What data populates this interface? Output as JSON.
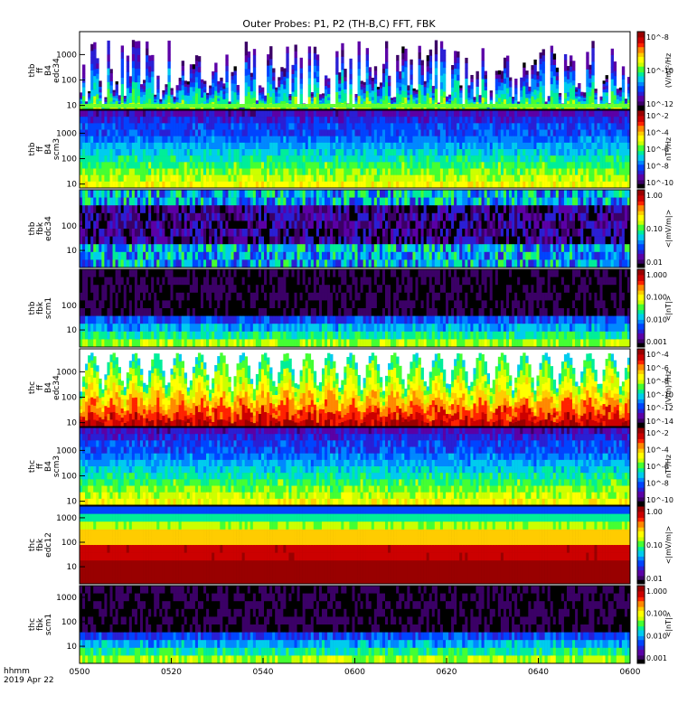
{
  "title": "Outer Probes: P1, P2 (TH-B,C) FFT, FBK",
  "footer": {
    "line1": "hhmm",
    "line2": "2019 Apr 22"
  },
  "chart_data": {
    "type": "heatmap",
    "title": "Outer Probes: P1, P2 (TH-B,C) FFT, FBK",
    "x_ticks": [
      "0500",
      "0520",
      "0540",
      "0600",
      "0620",
      "0640",
      "0600"
    ],
    "x_tick_note": "leftmost tick printed as 0600 in original image",
    "panels": [
      {
        "id": "thb-ff-edc34",
        "labels": [
          "thb",
          "ff",
          "B4",
          "edc34"
        ],
        "y_ticks": [
          "1000",
          "100",
          "10"
        ],
        "y_range": [
          7,
          8000
        ],
        "scale": "log",
        "cb_ticks": [
          "10^-8",
          "10^-10",
          "10^-12"
        ],
        "cb_label": "(V/m)²/Hz",
        "pattern": "bursty"
      },
      {
        "id": "thb-ff-scm3",
        "labels": [
          "thb",
          "ff",
          "B4",
          "scm3"
        ],
        "y_ticks": [
          "1000",
          "100",
          "10"
        ],
        "y_range": [
          7,
          8000
        ],
        "scale": "log",
        "cb_ticks": [
          "10^-2",
          "10^-4",
          "10^-6",
          "10^-8",
          "10^-10"
        ],
        "cb_label": "nT²/Hz",
        "pattern": "layered"
      },
      {
        "id": "thb-fbk-edc34",
        "labels": [
          "thb",
          "fbk",
          "edc34"
        ],
        "y_ticks": [
          "100",
          "10"
        ],
        "y_range": [
          2,
          3000
        ],
        "scale": "log",
        "cb_ticks": [
          "1.00",
          "0.10",
          "0.01"
        ],
        "cb_label": "<|mV/m|>",
        "pattern": "darkband"
      },
      {
        "id": "thb-fbk-scm1",
        "labels": [
          "thb",
          "fbk",
          "scm1"
        ],
        "y_ticks": [
          "100",
          "10"
        ],
        "y_range": [
          2,
          3000
        ],
        "scale": "log",
        "cb_ticks": [
          "1.000",
          "0.100",
          "0.010",
          "0.001"
        ],
        "cb_label": "<|nT|>",
        "pattern": "dark"
      },
      {
        "id": "thc-ff-edc34",
        "labels": [
          "thc",
          "ff",
          "B4",
          "edc34"
        ],
        "y_ticks": [
          "1000",
          "100",
          "10"
        ],
        "y_range": [
          7,
          8000
        ],
        "scale": "log",
        "cb_ticks": [
          "10^-4",
          "10^-6",
          "10^-8",
          "10^-10",
          "10^-12",
          "10^-14"
        ],
        "cb_label": "(V/m)²/Hz",
        "pattern": "spikes"
      },
      {
        "id": "thc-ff-scm3",
        "labels": [
          "thc",
          "ff",
          "B4",
          "scm3"
        ],
        "y_ticks": [
          "1000",
          "100",
          "10"
        ],
        "y_range": [
          7,
          8000
        ],
        "scale": "log",
        "cb_ticks": [
          "10^-2",
          "10^-4",
          "10^-6",
          "10^-8",
          "10^-10"
        ],
        "cb_label": "nT²/Hz",
        "pattern": "layered"
      },
      {
        "id": "thc-fbk-edc12",
        "labels": [
          "thc",
          "fbk",
          "edc12"
        ],
        "y_ticks": [
          "1000",
          "100",
          "10"
        ],
        "y_range": [
          2,
          3000
        ],
        "scale": "log",
        "cb_ticks": [
          "1.00",
          "0.10",
          "0.01"
        ],
        "cb_label": "<|mV/m|>",
        "pattern": "bands"
      },
      {
        "id": "thc-fbk-scm1",
        "labels": [
          "thc",
          "fbk",
          "scm1"
        ],
        "y_ticks": [
          "1000",
          "100",
          "10"
        ],
        "y_range": [
          2,
          3000
        ],
        "scale": "log",
        "cb_ticks": [
          "1.000",
          "0.100",
          "0.010",
          "0.001"
        ],
        "cb_label": "<|nT|>",
        "pattern": "dark"
      }
    ]
  }
}
